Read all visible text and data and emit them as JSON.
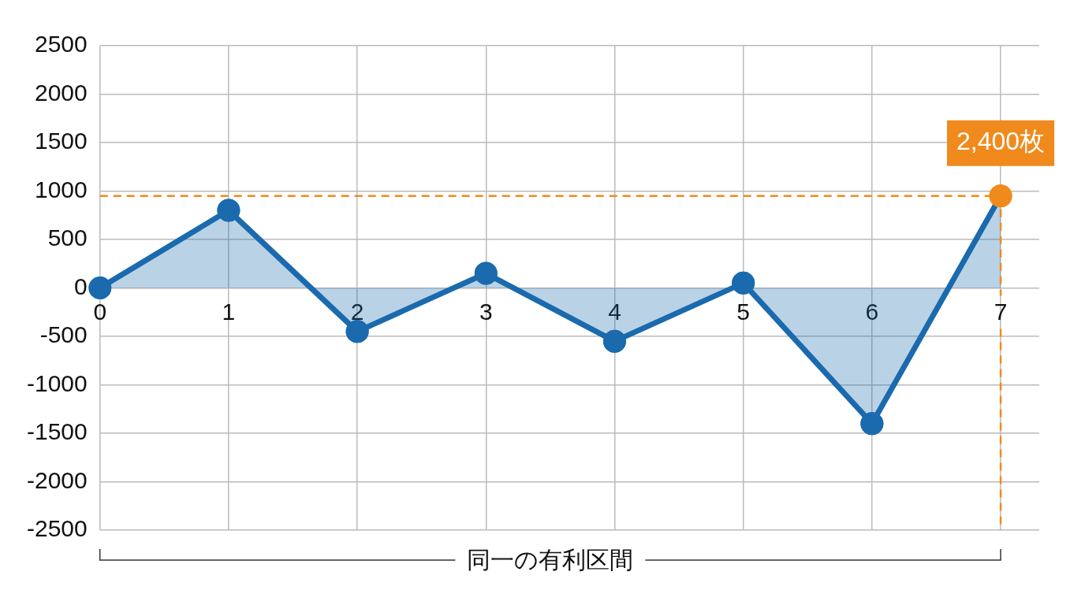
{
  "chart_data": {
    "type": "area",
    "x": [
      0,
      1,
      2,
      3,
      4,
      5,
      6,
      7
    ],
    "series": [
      {
        "color": "#1a6aad",
        "colors": [
          "#1a6aad",
          "#1a6aad",
          "#1a6aad",
          "#1a6aad",
          "#1a6aad",
          "#1a6aad",
          "#1a6aad",
          "#f08a1c"
        ],
        "values": [
          0,
          800,
          -450,
          150,
          -550,
          50,
          -1400,
          950
        ]
      }
    ],
    "xlim": [
      0,
      7.3
    ],
    "xticks": [
      0,
      1,
      2,
      3,
      4,
      5,
      6,
      7
    ],
    "ylim": [
      -2500,
      2500
    ],
    "yticks": [
      -2500,
      -2000,
      -1500,
      -1000,
      -500,
      0,
      500,
      1000,
      1500,
      2000,
      2500
    ],
    "grid": true,
    "legend": false,
    "marker": "circle",
    "line_style": "solid",
    "ref_lines": [
      {
        "axis": "y",
        "value": 950,
        "color": "#f08a1c",
        "line_style": "dashed"
      },
      {
        "axis": "x",
        "value": 7,
        "color": "#f08a1c",
        "line_style": "dashed"
      }
    ],
    "annotations": [
      {
        "text": "2,400枚",
        "x": 7,
        "y": 950
      },
      "同一の有利区間"
    ]
  }
}
